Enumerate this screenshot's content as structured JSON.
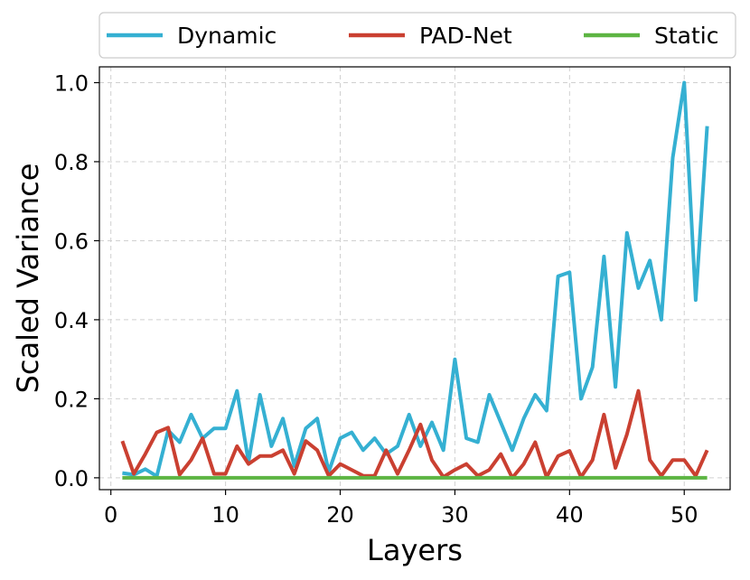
{
  "chart_data": {
    "type": "line",
    "title": "",
    "xlabel": "Layers",
    "ylabel": "Scaled Variance",
    "xlim": [
      -1,
      54
    ],
    "ylim": [
      -0.03,
      1.04
    ],
    "xticks": [
      0,
      10,
      20,
      30,
      40,
      50
    ],
    "yticks": [
      0.0,
      0.2,
      0.4,
      0.6,
      0.8,
      1.0
    ],
    "xtick_labels": [
      "0",
      "10",
      "20",
      "30",
      "40",
      "50"
    ],
    "ytick_labels": [
      "0.0",
      "0.2",
      "0.4",
      "0.6",
      "0.8",
      "1.0"
    ],
    "grid": true,
    "legend_position": "top",
    "x": [
      1,
      2,
      3,
      4,
      5,
      6,
      7,
      8,
      9,
      10,
      11,
      12,
      13,
      14,
      15,
      16,
      17,
      18,
      19,
      20,
      21,
      22,
      23,
      24,
      25,
      26,
      27,
      28,
      29,
      30,
      31,
      32,
      33,
      34,
      35,
      36,
      37,
      38,
      39,
      40,
      41,
      42,
      43,
      44,
      45,
      46,
      47,
      48,
      49,
      50,
      51,
      52
    ],
    "series": [
      {
        "name": "Dynamic",
        "color": "#35b0d2",
        "values": [
          0.012,
          0.008,
          0.022,
          0.004,
          0.12,
          0.09,
          0.16,
          0.1,
          0.125,
          0.125,
          0.22,
          0.04,
          0.21,
          0.08,
          0.15,
          0.03,
          0.125,
          0.15,
          0.015,
          0.1,
          0.115,
          0.07,
          0.1,
          0.06,
          0.08,
          0.16,
          0.08,
          0.14,
          0.07,
          0.3,
          0.1,
          0.09,
          0.21,
          0.14,
          0.07,
          0.15,
          0.21,
          0.17,
          0.51,
          0.52,
          0.2,
          0.28,
          0.56,
          0.23,
          0.62,
          0.48,
          0.55,
          0.4,
          0.81,
          1.0,
          0.45,
          0.89
        ]
      },
      {
        "name": "PAD-Net",
        "color": "#ca4031",
        "values": [
          0.093,
          0.01,
          0.06,
          0.115,
          0.127,
          0.008,
          0.045,
          0.1,
          0.01,
          0.01,
          0.08,
          0.035,
          0.055,
          0.055,
          0.07,
          0.01,
          0.093,
          0.07,
          0.005,
          0.035,
          0.02,
          0.005,
          0.005,
          0.07,
          0.01,
          0.07,
          0.135,
          0.045,
          0.002,
          0.02,
          0.035,
          0.005,
          0.02,
          0.06,
          0.0,
          0.035,
          0.09,
          0.002,
          0.055,
          0.068,
          0.002,
          0.045,
          0.16,
          0.025,
          0.11,
          0.22,
          0.045,
          0.005,
          0.045,
          0.045,
          0.005,
          0.07
        ]
      },
      {
        "name": "Static",
        "color": "#5db543",
        "values": [
          0,
          0,
          0,
          0,
          0,
          0,
          0,
          0,
          0,
          0,
          0,
          0,
          0,
          0,
          0,
          0,
          0,
          0,
          0,
          0,
          0,
          0,
          0,
          0,
          0,
          0,
          0,
          0,
          0,
          0,
          0,
          0,
          0,
          0,
          0,
          0,
          0,
          0,
          0,
          0,
          0,
          0,
          0,
          0,
          0,
          0,
          0,
          0,
          0,
          0,
          0,
          0
        ]
      }
    ]
  }
}
